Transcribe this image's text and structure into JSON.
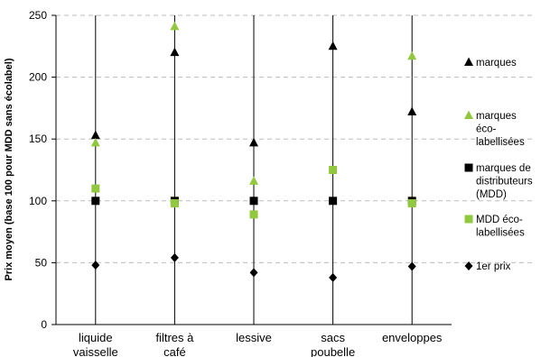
{
  "chart_data": {
    "type": "scatter",
    "title": "",
    "xlabel": "",
    "ylabel": "Prix moyen (base 100 pour MDD sans écolabel)",
    "ylim": [
      0,
      250
    ],
    "yticks": [
      0,
      50,
      100,
      150,
      200,
      250
    ],
    "grid": "horizontal dashed",
    "legend_position": "right",
    "categories": [
      [
        "liquide",
        "vaisselle"
      ],
      [
        "filtres à",
        "café"
      ],
      [
        "lessive"
      ],
      [
        "sacs",
        "poubelle"
      ],
      [
        "enveloppes"
      ]
    ],
    "series": [
      {
        "name": [
          "marques"
        ],
        "marker": "triangle",
        "color": "#000000",
        "values": [
          153,
          220,
          147,
          225,
          172
        ]
      },
      {
        "name": [
          "marques",
          "éco-",
          "labellisées"
        ],
        "marker": "triangle",
        "color": "#92c83e",
        "values": [
          147,
          241,
          116,
          null,
          217
        ]
      },
      {
        "name": [
          "marques de",
          "distributeurs",
          "(MDD)"
        ],
        "marker": "square",
        "color": "#000000",
        "values": [
          100,
          100,
          100,
          100,
          100
        ]
      },
      {
        "name": [
          "MDD éco-",
          "labellisées"
        ],
        "marker": "square",
        "color": "#92c83e",
        "values": [
          110,
          98,
          89,
          125,
          98
        ]
      },
      {
        "name": [
          "1er prix"
        ],
        "marker": "diamond",
        "color": "#000000",
        "values": [
          48,
          54,
          42,
          38,
          47
        ]
      }
    ]
  }
}
